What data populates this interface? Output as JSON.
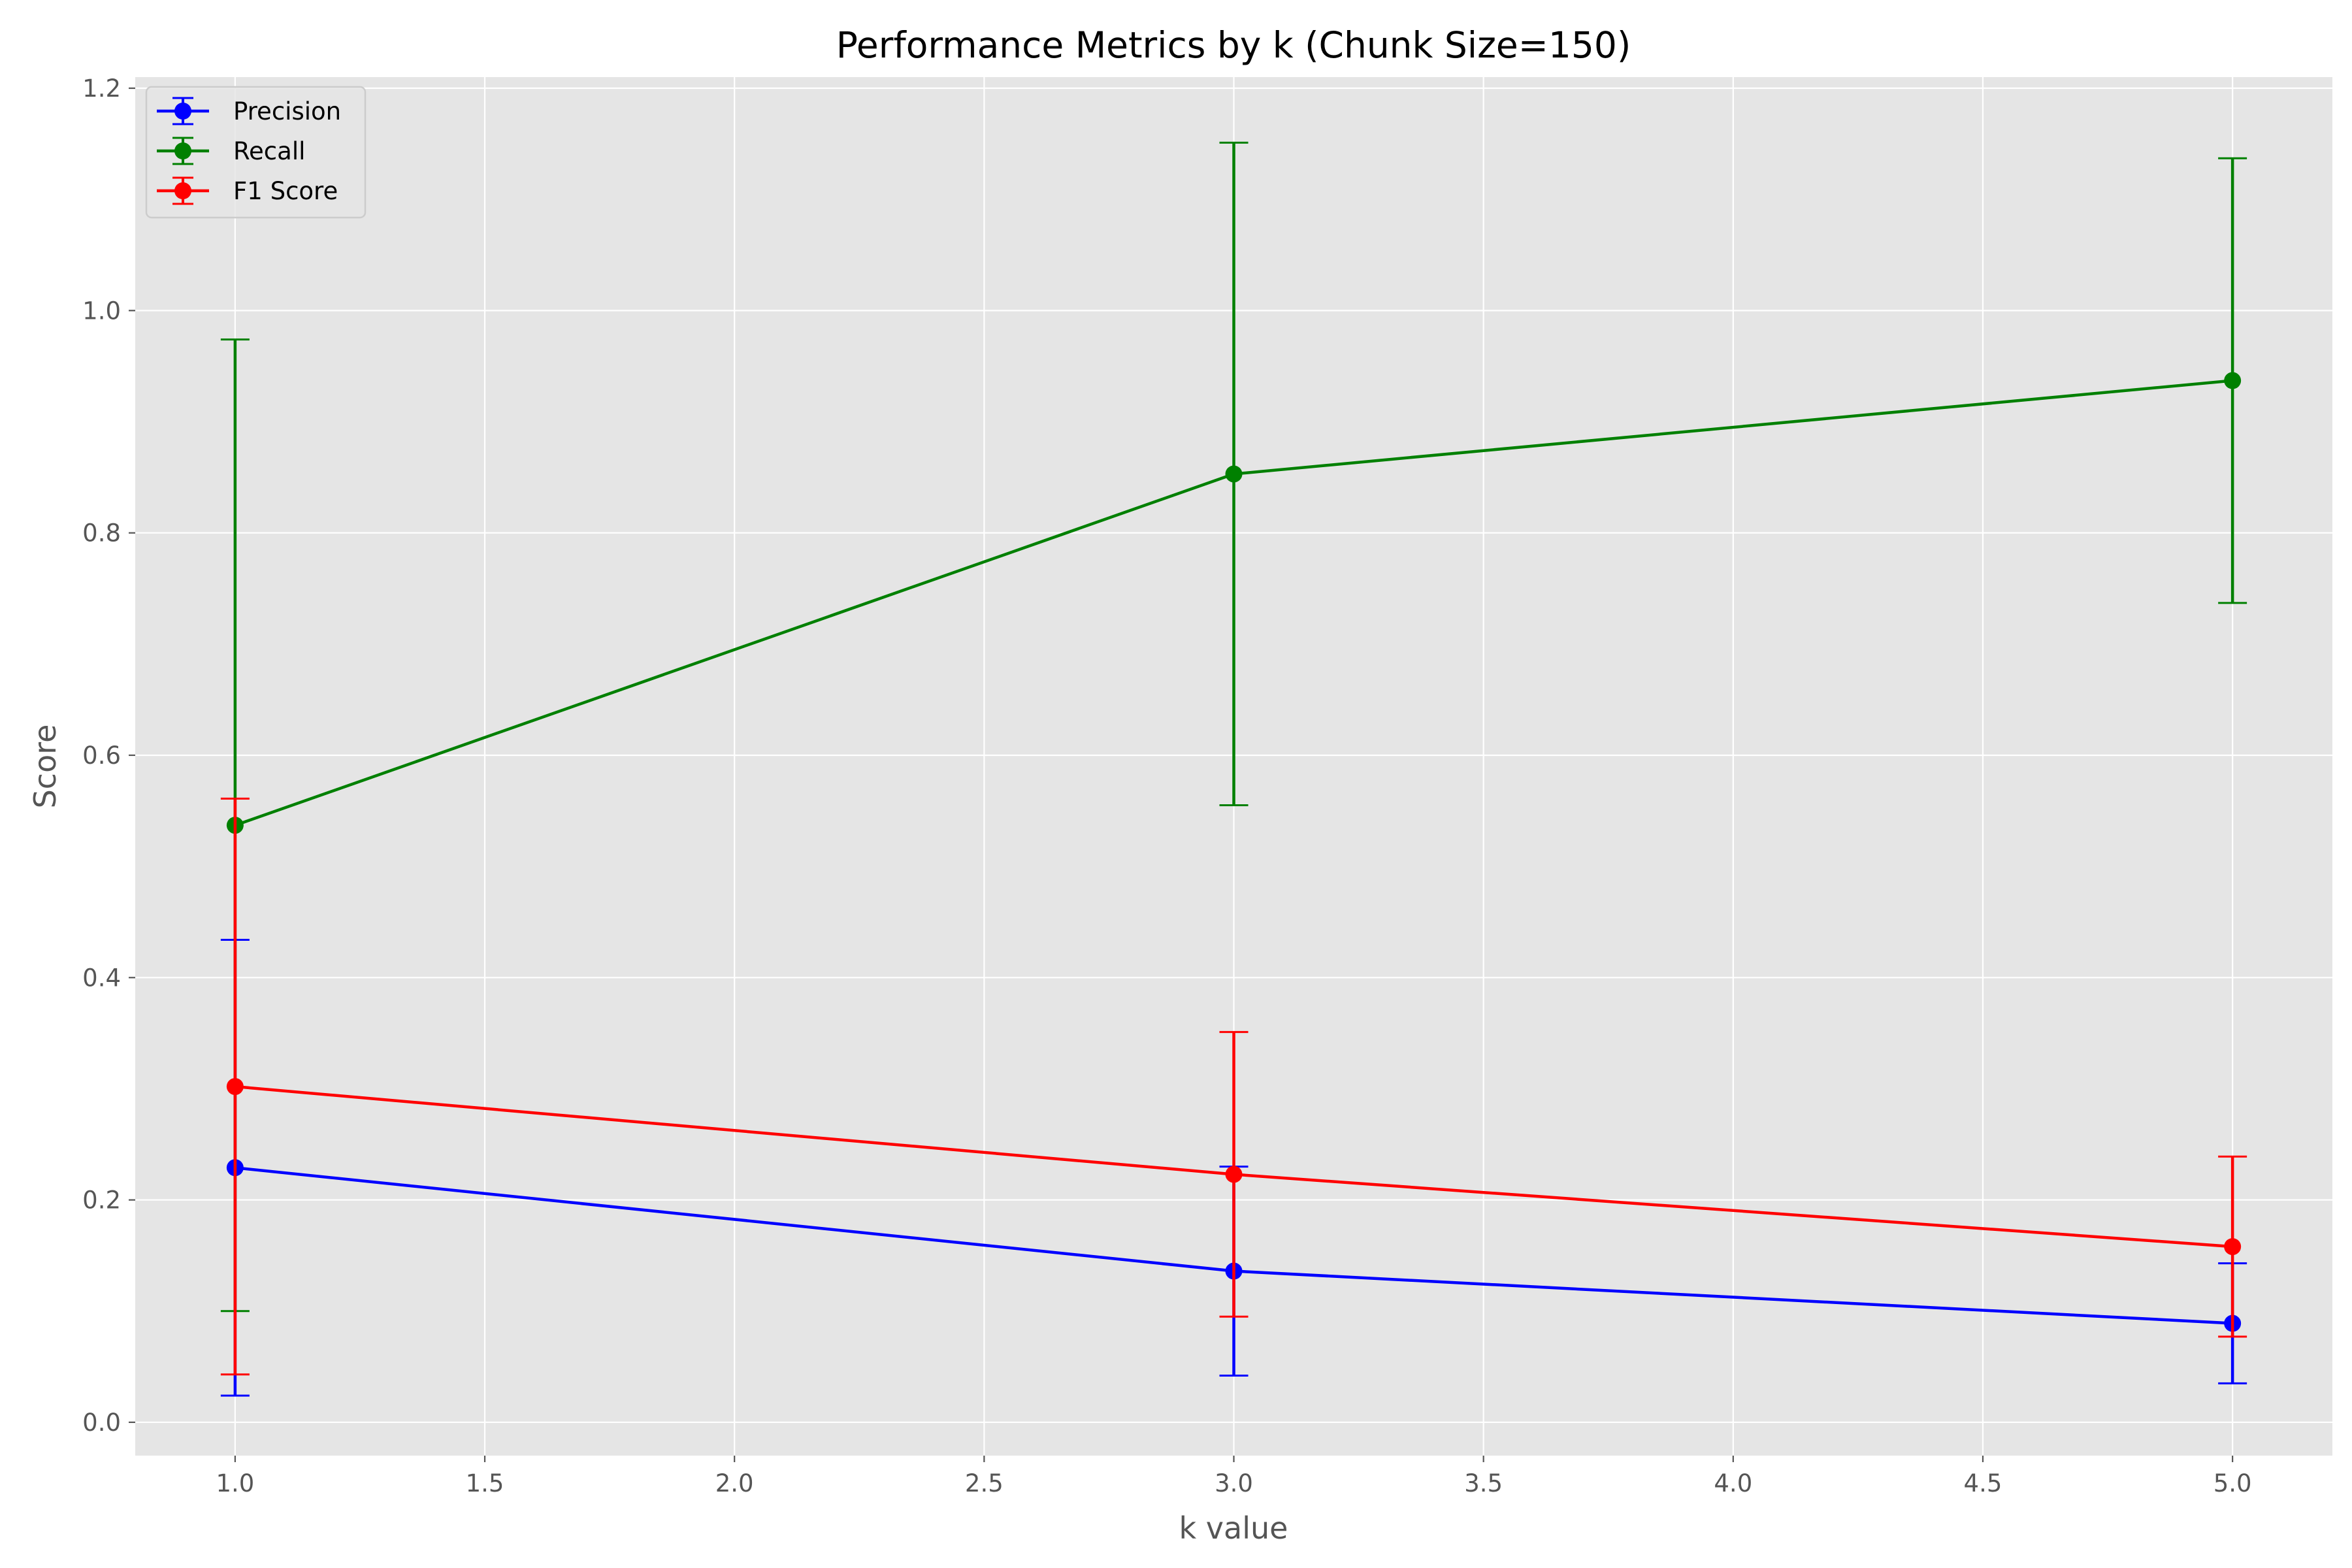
{
  "chart_data": {
    "type": "line",
    "title": "Performance Metrics by k (Chunk Size=150)",
    "xlabel": "k value",
    "ylabel": "Score",
    "xlim": [
      0.8,
      5.2
    ],
    "ylim": [
      -0.03,
      1.21
    ],
    "x_ticks": [
      1.0,
      1.5,
      2.0,
      2.5,
      3.0,
      3.5,
      4.0,
      4.5,
      5.0
    ],
    "x_tick_labels": [
      "1.0",
      "1.5",
      "2.0",
      "2.5",
      "3.0",
      "3.5",
      "4.0",
      "4.5",
      "5.0"
    ],
    "y_ticks": [
      0.0,
      0.2,
      0.4,
      0.6,
      0.8,
      1.0,
      1.2
    ],
    "y_tick_labels": [
      "0.0",
      "0.2",
      "0.4",
      "0.6",
      "0.8",
      "1.0",
      "1.2"
    ],
    "grid": true,
    "legend_position": "top-left",
    "x": [
      1,
      3,
      5
    ],
    "series": [
      {
        "name": "Precision",
        "color": "#0000ff",
        "values": [
          0.229,
          0.136,
          0.089
        ],
        "errors": [
          0.205,
          0.094,
          0.054
        ]
      },
      {
        "name": "Recall",
        "color": "#008000",
        "values": [
          0.537,
          0.853,
          0.937
        ],
        "errors": [
          0.437,
          0.298,
          0.2
        ]
      },
      {
        "name": "F1 Score",
        "color": "#ff0000",
        "values": [
          0.302,
          0.223,
          0.158
        ],
        "errors": [
          0.259,
          0.128,
          0.081
        ]
      }
    ]
  }
}
